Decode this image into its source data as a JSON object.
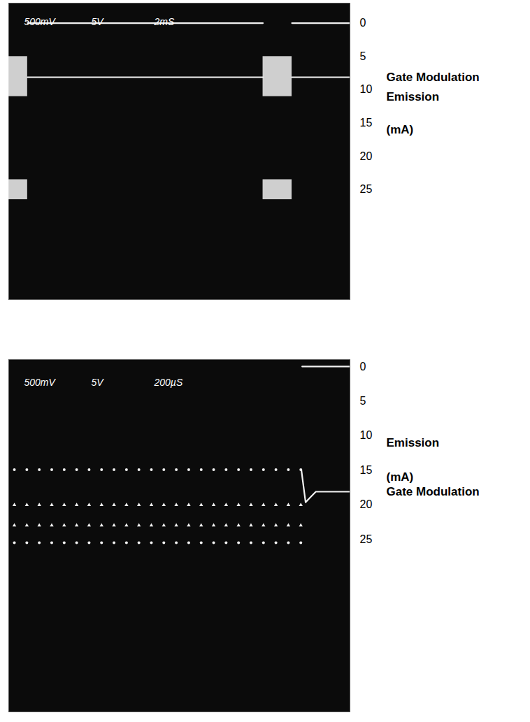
{
  "chart_data": [
    {
      "type": "line",
      "annotations": [
        "500mV",
        "5V",
        "2mS"
      ],
      "xlim": [
        0,
        20
      ],
      "ylim": [
        -3,
        41.5
      ],
      "yticks": [
        0,
        5,
        10,
        15,
        20,
        25
      ],
      "ylabel": "Emission (mA)",
      "y2lim": [
        -10,
        30
      ],
      "y2ticks": [],
      "y2label": "Gate Modulation",
      "tick_labels": "y",
      "series": [
        {
          "type": "line",
          "color": "#f2f2f2",
          "x": [
            1.1,
            14.9,
            15.7,
            16.6,
            20
          ],
          "values": [
            0,
            0,
            null,
            0,
            0
          ],
          "bursts": [
            {
              "x1": 0,
              "x2": 1.1,
              "low": 23.5,
              "high": 26.5
            },
            {
              "x1": 14.9,
              "x2": 16.6,
              "low": 23.5,
              "high": 26.5
            }
          ]
        },
        {
          "type": "line",
          "color": "#f2f2f2",
          "axis": "y2",
          "x": [
            1.1,
            14.9,
            15.7,
            16.6,
            20
          ],
          "values": [
            0,
            0,
            null,
            0,
            0
          ],
          "bursts": [
            {
              "x1": 0,
              "x2": 1.1,
              "low": -2.8,
              "high": 2.6
            },
            {
              "x1": 14.9,
              "x2": 16.6,
              "low": -2.8,
              "high": 2.6
            }
          ]
        }
      ]
    },
    {
      "type": "line",
      "annotations": [
        "500mV",
        "5V",
        "200µS"
      ],
      "xlim": [
        0,
        2000
      ],
      "ylim": [
        -1,
        50
      ],
      "yticks": [
        0,
        5,
        10,
        15,
        20,
        25
      ],
      "ylabel": "Emission (mA)",
      "y2lim": [
        -15,
        25
      ],
      "y2ticks": [],
      "y2label": "Gate Modulation",
      "tick_labels": "y",
      "series": [
        {
          "type": "scatter",
          "color": "#f2f2f2",
          "marker": "triangle",
          "x": [
            33,
            106,
            179,
            252,
            325,
            398,
            471,
            544,
            617,
            690,
            763,
            836,
            909,
            982,
            1055,
            1128,
            1201,
            1274,
            1347,
            1420,
            1493,
            1566,
            1639,
            1712
          ],
          "values": [
            23,
            23,
            23,
            23,
            23,
            23,
            23,
            23,
            23,
            23,
            23,
            23,
            23,
            23,
            23,
            23,
            23,
            23,
            23,
            23,
            23,
            23,
            23,
            23
          ]
        },
        {
          "type": "scatter",
          "color": "#f2f2f2",
          "marker": "circle",
          "x": [
            33,
            106,
            179,
            252,
            325,
            398,
            471,
            544,
            617,
            690,
            763,
            836,
            909,
            982,
            1055,
            1128,
            1201,
            1274,
            1347,
            1420,
            1493,
            1566,
            1639,
            1712
          ],
          "values": [
            25.5,
            25.5,
            25.5,
            25.5,
            25.5,
            25.5,
            25.5,
            25.5,
            25.5,
            25.5,
            25.5,
            25.5,
            25.5,
            25.5,
            25.5,
            25.5,
            25.5,
            25.5,
            25.5,
            25.5,
            25.5,
            25.5,
            25.5,
            25.5
          ]
        },
        {
          "type": "line",
          "color": "#f2f2f2",
          "x": [
            1720,
            2000
          ],
          "values": [
            0,
            0
          ]
        },
        {
          "type": "scatter",
          "color": "#f2f2f2",
          "marker": "triangle",
          "axis": "y2",
          "x": [
            33,
            106,
            179,
            252,
            325,
            398,
            471,
            544,
            617,
            690,
            763,
            836,
            909,
            982,
            1055,
            1128,
            1201,
            1274,
            1347,
            1420,
            1493,
            1566,
            1639,
            1712
          ],
          "values": [
            1.5,
            1.5,
            1.5,
            1.5,
            1.5,
            1.5,
            1.5,
            1.5,
            1.5,
            1.5,
            1.5,
            1.5,
            1.5,
            1.5,
            1.5,
            1.5,
            1.5,
            1.5,
            1.5,
            1.5,
            1.5,
            1.5,
            1.5,
            1.5
          ]
        },
        {
          "type": "scatter",
          "color": "#f2f2f2",
          "marker": "circle",
          "axis": "y2",
          "x": [
            33,
            106,
            179,
            252,
            325,
            398,
            471,
            544,
            617,
            690,
            763,
            836,
            909,
            982,
            1055,
            1128,
            1201,
            1274,
            1347,
            1420,
            1493,
            1566,
            1639,
            1712
          ],
          "values": [
            -2.5,
            -2.5,
            -2.5,
            -2.5,
            -2.5,
            -2.5,
            -2.5,
            -2.5,
            -2.5,
            -2.5,
            -2.5,
            -2.5,
            -2.5,
            -2.5,
            -2.5,
            -2.5,
            -2.5,
            -2.5,
            -2.5,
            -2.5,
            -2.5,
            -2.5,
            -2.5,
            -2.5
          ]
        },
        {
          "type": "line",
          "color": "#f2f2f2",
          "axis": "y2",
          "x": [
            1715,
            1740,
            1760,
            1800,
            2000
          ],
          "values": [
            -2.5,
            1.2,
            0.8,
            0,
            0
          ]
        }
      ]
    }
  ]
}
